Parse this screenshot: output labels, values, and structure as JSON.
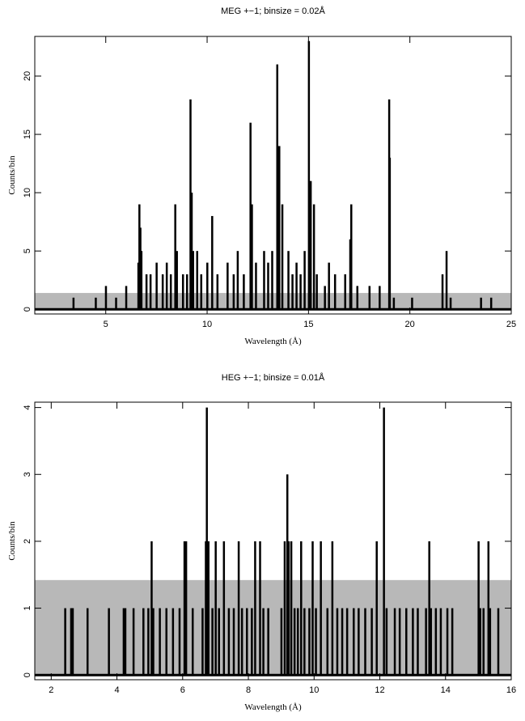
{
  "chart_data": [
    {
      "type": "bar",
      "title": "MEG +−1; binsize = 0.02Å",
      "xlabel": "Wavelength (Å)",
      "ylabel": "Counts/bin",
      "xlim": [
        1.5,
        25
      ],
      "ylim": [
        -0.4,
        23.4
      ],
      "xticks": [
        5,
        10,
        15,
        20,
        25
      ],
      "yticks": [
        0,
        5,
        10,
        15,
        20
      ],
      "color": "#000000",
      "background": 1.4,
      "background_color": "#b8b8b8",
      "x": [
        3.4,
        4.5,
        5,
        5.5,
        6,
        6.6,
        6.65,
        6.7,
        6.75,
        7.0,
        7.2,
        7.5,
        7.8,
        8.0,
        8.2,
        8.42,
        8.5,
        8.8,
        9.0,
        9.17,
        9.23,
        9.3,
        9.5,
        9.7,
        10.0,
        10.24,
        10.5,
        11.0,
        11.3,
        11.5,
        11.8,
        12.13,
        12.2,
        12.4,
        12.8,
        13.0,
        13.2,
        13.45,
        13.55,
        13.7,
        14.0,
        14.2,
        14.4,
        14.6,
        14.8,
        15.01,
        15.1,
        15.26,
        15.4,
        15.8,
        16.0,
        16.3,
        16.8,
        17.05,
        17.1,
        17.4,
        18.0,
        18.5,
        18.97,
        19.0,
        19.2,
        20.1,
        21.6,
        21.8,
        22.0,
        23.5,
        24.0
      ],
      "values": [
        1,
        1,
        2,
        1,
        2,
        4,
        9,
        7,
        5,
        3,
        3,
        4,
        3,
        4,
        3,
        9,
        5,
        3,
        3,
        18,
        10,
        5,
        5,
        3,
        4,
        8,
        3,
        4,
        3,
        5,
        3,
        16,
        9,
        4,
        5,
        4,
        5,
        21,
        14,
        9,
        5,
        3,
        4,
        3,
        5,
        23,
        11,
        9,
        3,
        2,
        4,
        3,
        3,
        6,
        9,
        2,
        2,
        2,
        18,
        13,
        1,
        1,
        3,
        5,
        1,
        1,
        1
      ]
    },
    {
      "type": "bar",
      "title": "HEG +−1; binsize = 0.01Å",
      "xlabel": "Wavelength (Å)",
      "ylabel": "Counts/bin",
      "xlim": [
        1.5,
        16
      ],
      "ylim": [
        -0.07,
        4.08
      ],
      "xticks": [
        2,
        4,
        6,
        8,
        10,
        12,
        14,
        16
      ],
      "yticks": [
        0,
        1,
        2,
        3,
        4
      ],
      "color": "#000000",
      "background": 1.42,
      "background_color": "#b8b8b8",
      "x": [
        2.42,
        2.6,
        2.65,
        3.1,
        3.75,
        4.2,
        4.25,
        4.5,
        4.8,
        4.95,
        5.05,
        5.1,
        5.3,
        5.5,
        5.7,
        5.9,
        6.05,
        6.1,
        6.3,
        6.6,
        6.7,
        6.73,
        6.78,
        6.9,
        7.0,
        7.1,
        7.25,
        7.4,
        7.55,
        7.7,
        7.8,
        7.95,
        8.1,
        8.2,
        8.35,
        8.45,
        8.6,
        9.0,
        9.1,
        9.18,
        9.22,
        9.3,
        9.4,
        9.5,
        9.6,
        9.7,
        9.85,
        9.95,
        10.05,
        10.2,
        10.4,
        10.55,
        10.7,
        10.85,
        11.0,
        11.2,
        11.35,
        11.55,
        11.75,
        11.9,
        12.12,
        12.2,
        12.45,
        12.6,
        12.8,
        13.0,
        13.15,
        13.4,
        13.5,
        13.55,
        13.7,
        13.85,
        14.05,
        14.2,
        15.0,
        15.05,
        15.15,
        15.3,
        15.35,
        15.6
      ],
      "values": [
        1,
        1,
        1,
        1,
        1,
        1,
        1,
        1,
        1,
        1,
        2,
        1,
        1,
        1,
        1,
        1,
        2,
        2,
        1,
        1,
        2,
        4,
        2,
        1,
        2,
        1,
        2,
        1,
        1,
        2,
        1,
        1,
        1,
        2,
        2,
        1,
        1,
        1,
        2,
        3,
        2,
        2,
        1,
        1,
        2,
        1,
        1,
        2,
        1,
        2,
        1,
        2,
        1,
        1,
        1,
        1,
        1,
        1,
        1,
        2,
        4,
        1,
        1,
        1,
        1,
        1,
        1,
        1,
        2,
        1,
        1,
        1,
        1,
        1,
        2,
        1,
        1,
        2,
        1,
        1
      ]
    }
  ]
}
